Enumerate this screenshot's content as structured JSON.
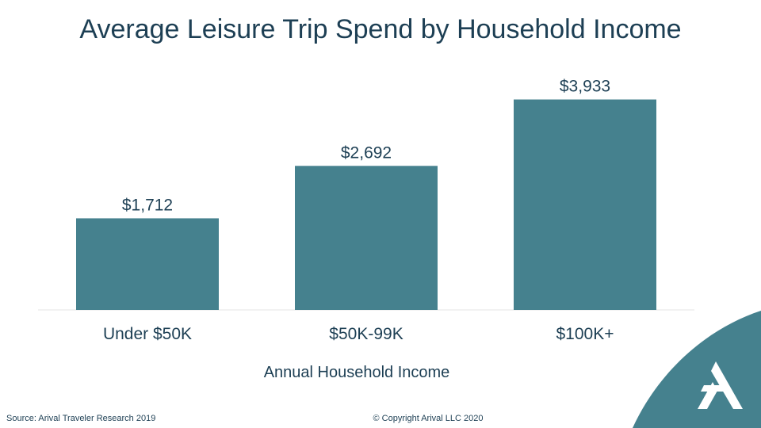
{
  "chart_data": {
    "type": "bar",
    "title": "Average Leisure Trip Spend by Household Income",
    "xlabel": "Annual Household Income",
    "ylabel": "",
    "categories": [
      "Under $50K",
      "$50K-99K",
      "$100K+"
    ],
    "values": [
      1712,
      2692,
      3933
    ],
    "value_labels": [
      "$1,712",
      "$2,692",
      "$3,933"
    ],
    "ylim": [
      0,
      4000
    ],
    "grid": false,
    "bar_color": "#45818e"
  },
  "footer": {
    "source": "Source: Arival Traveler Research 2019",
    "copyright": "© Copyright Arival LLC 2020"
  },
  "brand": {
    "accent": "#45818e",
    "logo_icon": "arival-a-logo-icon"
  }
}
